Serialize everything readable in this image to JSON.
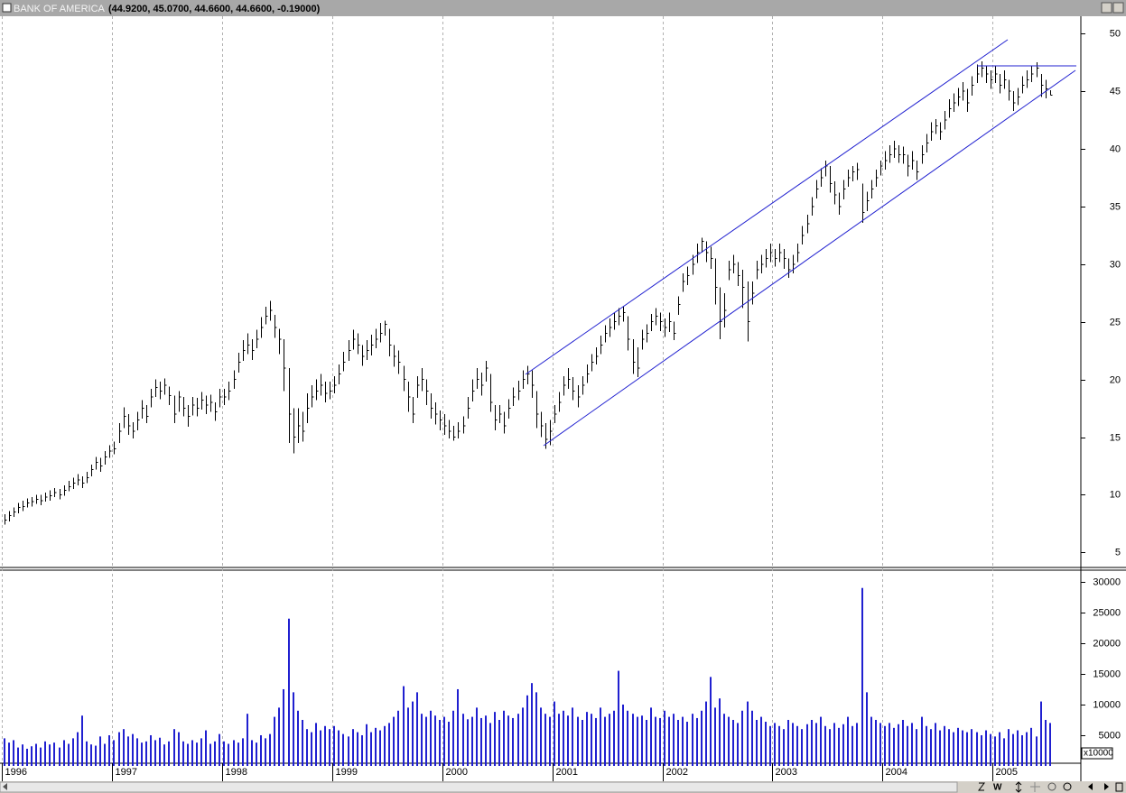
{
  "window": {
    "title": "BANK OF AMERICA",
    "quote": "(44.9200, 45.0700, 44.6600, 44.6600, -0.19000)",
    "period": "W"
  },
  "chart_data": [
    {
      "type": "ohlc",
      "color": "#000000",
      "categories": [
        "1996",
        null,
        null,
        null,
        null,
        null,
        null,
        null,
        null,
        null,
        null,
        null,
        null,
        null,
        null,
        null,
        null,
        null,
        null,
        null,
        null,
        null,
        null,
        null,
        "1997",
        null,
        null,
        null,
        null,
        null,
        null,
        null,
        null,
        null,
        null,
        null,
        null,
        null,
        null,
        null,
        null,
        null,
        null,
        null,
        null,
        null,
        null,
        null,
        "1998",
        null,
        null,
        null,
        null,
        null,
        null,
        null,
        null,
        null,
        null,
        null,
        null,
        null,
        null,
        null,
        null,
        null,
        null,
        null,
        null,
        null,
        null,
        null,
        "1999",
        null,
        null,
        null,
        null,
        null,
        null,
        null,
        null,
        null,
        null,
        null,
        null,
        null,
        null,
        null,
        null,
        null,
        null,
        null,
        null,
        null,
        null,
        null,
        "2000",
        null,
        null,
        null,
        null,
        null,
        null,
        null,
        null,
        null,
        null,
        null,
        null,
        null,
        null,
        null,
        null,
        null,
        null,
        null,
        null,
        null,
        null,
        null,
        "2001",
        null,
        null,
        null,
        null,
        null,
        null,
        null,
        null,
        null,
        null,
        null,
        null,
        null,
        null,
        null,
        null,
        null,
        null,
        null,
        null,
        null,
        null,
        null,
        "2002",
        null,
        null,
        null,
        null,
        null,
        null,
        null,
        null,
        null,
        null,
        null,
        null,
        null,
        null,
        null,
        null,
        null,
        null,
        null,
        null,
        null,
        null,
        null,
        "2003",
        null,
        null,
        null,
        null,
        null,
        null,
        null,
        null,
        null,
        null,
        null,
        null,
        null,
        null,
        null,
        null,
        null,
        null,
        null,
        null,
        null,
        null,
        null,
        "2004",
        null,
        null,
        null,
        null,
        null,
        null,
        null,
        null,
        null,
        null,
        null,
        null,
        null,
        null,
        null,
        null,
        null,
        null,
        null,
        null,
        null,
        null,
        null,
        "2005",
        null,
        null,
        null,
        null,
        null,
        null,
        null,
        null,
        null,
        null,
        null,
        null
      ],
      "high": [
        8.3,
        8.6,
        8.9,
        9.3,
        9.5,
        9.7,
        9.8,
        10.0,
        10.0,
        10.2,
        10.4,
        10.6,
        10.5,
        10.8,
        11.2,
        11.5,
        11.8,
        11.6,
        12.0,
        12.6,
        13.3,
        13.2,
        13.8,
        14.3,
        14.6,
        16.2,
        17.6,
        17.0,
        16.3,
        17.2,
        18.2,
        17.8,
        19.2,
        20.0,
        19.8,
        20.1,
        19.4,
        18.6,
        19.0,
        18.5,
        17.8,
        18.5,
        18.4,
        18.9,
        18.6,
        18.7,
        18.0,
        19.2,
        19.2,
        19.8,
        20.8,
        22.3,
        23.4,
        24.0,
        23.5,
        24.3,
        25.4,
        26.3,
        26.8,
        25.6,
        24.4,
        23.5,
        21.0,
        17.5,
        17.5,
        17.2,
        18.8,
        19.5,
        20.0,
        20.5,
        19.8,
        19.8,
        20.3,
        21.3,
        22.4,
        23.4,
        24.3,
        24.0,
        23.0,
        23.4,
        23.9,
        24.4,
        24.9,
        25.1,
        24.4,
        23.0,
        22.5,
        21.2,
        19.8,
        18.5,
        20.3,
        21.0,
        20.0,
        18.8,
        18.0,
        17.3,
        17.0,
        16.5,
        16.0,
        16.3,
        16.8,
        18.5,
        20.0,
        21.0,
        20.6,
        21.6,
        20.5,
        17.8,
        17.8,
        17.2,
        18.3,
        19.3,
        19.9,
        20.8,
        21.2,
        20.8,
        19.0,
        17.2,
        16.2,
        16.5,
        17.8,
        18.9,
        20.3,
        21.0,
        20.2,
        19.5,
        20.3,
        21.3,
        22.2,
        22.8,
        23.8,
        24.7,
        25.3,
        25.8,
        26.2,
        26.3,
        25.5,
        23.5,
        22.8,
        24.3,
        24.8,
        25.7,
        26.2,
        25.8,
        25.3,
        25.8,
        25.0,
        27.2,
        29.2,
        29.8,
        30.8,
        31.8,
        32.3,
        32.0,
        31.5,
        30.5,
        28.0,
        27.5,
        30.3,
        30.8,
        30.2,
        29.5,
        28.5,
        28.5,
        30.3,
        30.8,
        31.3,
        31.8,
        31.3,
        31.8,
        31.3,
        30.5,
        30.8,
        31.8,
        33.3,
        34.3,
        35.8,
        37.3,
        38.3,
        39.0,
        38.5,
        37.2,
        36.2,
        37.3,
        38.2,
        38.5,
        38.8,
        37.0,
        36.3,
        37.3,
        38.2,
        39.0,
        39.8,
        40.3,
        40.7,
        40.3,
        40.2,
        39.5,
        39.8,
        39.0,
        40.3,
        41.3,
        42.3,
        42.6,
        42.3,
        43.3,
        44.3,
        44.8,
        45.3,
        45.8,
        45.2,
        46.3,
        47.3,
        47.6,
        47.2,
        46.8,
        47.2,
        46.5,
        46.8,
        46.0,
        45.0,
        45.3,
        46.3,
        46.8,
        47.2,
        47.5,
        46.5,
        46.0,
        45.07
      ],
      "low": [
        7.4,
        7.7,
        8.1,
        8.4,
        8.6,
        8.9,
        9.0,
        9.2,
        9.1,
        9.4,
        9.5,
        9.8,
        9.6,
        9.9,
        10.3,
        10.5,
        10.8,
        10.6,
        11.0,
        11.6,
        12.2,
        12.0,
        12.6,
        13.2,
        13.5,
        14.5,
        15.8,
        15.2,
        14.9,
        15.6,
        16.6,
        16.2,
        17.6,
        18.5,
        18.3,
        18.7,
        17.8,
        16.2,
        17.2,
        16.8,
        15.9,
        16.9,
        16.8,
        17.4,
        17.0,
        17.2,
        16.4,
        17.6,
        17.8,
        18.2,
        19.2,
        20.6,
        21.6,
        22.2,
        21.7,
        22.7,
        23.6,
        24.8,
        25.1,
        23.6,
        22.2,
        19.0,
        14.5,
        13.6,
        14.5,
        14.6,
        16.2,
        17.6,
        18.2,
        18.6,
        18.0,
        18.3,
        18.8,
        19.6,
        20.7,
        21.6,
        22.6,
        22.2,
        21.2,
        21.7,
        22.1,
        22.7,
        23.2,
        23.8,
        22.0,
        21.1,
        20.5,
        19.0,
        17.2,
        16.2,
        18.4,
        19.0,
        17.8,
        16.6,
        16.1,
        15.6,
        15.2,
        14.9,
        14.7,
        14.9,
        15.3,
        16.6,
        18.1,
        19.2,
        18.6,
        19.8,
        17.2,
        15.6,
        16.2,
        15.3,
        16.6,
        17.7,
        18.2,
        19.2,
        19.6,
        18.4,
        15.8,
        15.0,
        14.0,
        14.3,
        16.2,
        17.2,
        18.6,
        19.2,
        18.2,
        17.6,
        18.7,
        19.7,
        20.7,
        21.3,
        22.2,
        23.2,
        23.7,
        24.3,
        24.7,
        25.0,
        22.5,
        20.5,
        20.2,
        22.6,
        23.2,
        24.2,
        24.7,
        24.2,
        23.7,
        24.1,
        23.4,
        25.6,
        27.6,
        28.2,
        29.1,
        30.1,
        31.0,
        30.2,
        29.6,
        26.5,
        23.5,
        24.5,
        28.6,
        29.2,
        28.1,
        26.2,
        23.3,
        26.5,
        28.7,
        29.2,
        29.7,
        30.2,
        29.8,
        30.2,
        29.6,
        28.8,
        29.2,
        30.2,
        31.7,
        32.7,
        34.2,
        35.7,
        36.7,
        37.6,
        36.2,
        35.2,
        34.3,
        35.6,
        36.7,
        37.2,
        37.3,
        33.6,
        34.6,
        35.7,
        36.7,
        37.7,
        38.2,
        38.8,
        39.2,
        38.8,
        38.7,
        37.6,
        38.2,
        37.3,
        38.7,
        39.7,
        40.7,
        41.3,
        40.8,
        41.7,
        42.7,
        43.2,
        43.7,
        44.2,
        43.2,
        44.6,
        45.7,
        46.2,
        45.7,
        45.2,
        45.7,
        44.8,
        45.2,
        44.2,
        43.3,
        43.8,
        44.8,
        45.3,
        45.8,
        46.2,
        44.5,
        44.4,
        44.66
      ],
      "close": [
        7.8,
        8.2,
        8.5,
        8.9,
        9.0,
        9.3,
        9.4,
        9.6,
        9.5,
        9.8,
        9.9,
        10.2,
        10.0,
        10.4,
        10.7,
        11.0,
        11.3,
        11.0,
        11.5,
        12.2,
        12.8,
        12.5,
        13.3,
        13.8,
        14.0,
        15.5,
        16.8,
        16.0,
        15.5,
        16.5,
        17.5,
        16.8,
        18.5,
        19.3,
        19.0,
        19.5,
        18.6,
        17.0,
        18.5,
        17.5,
        16.8,
        17.8,
        17.5,
        18.2,
        17.8,
        18.0,
        17.2,
        18.5,
        18.5,
        19.0,
        20.0,
        21.5,
        22.5,
        23.0,
        22.5,
        23.5,
        24.5,
        25.5,
        26.0,
        24.5,
        23.5,
        21.0,
        17.0,
        15.0,
        16.0,
        15.5,
        17.5,
        18.5,
        19.0,
        19.5,
        18.8,
        19.0,
        19.5,
        20.5,
        21.5,
        22.5,
        23.5,
        23.0,
        22.0,
        22.5,
        23.0,
        23.5,
        24.0,
        24.8,
        23.0,
        22.0,
        21.5,
        20.0,
        18.5,
        17.0,
        19.5,
        20.0,
        19.0,
        17.5,
        17.0,
        16.5,
        16.0,
        15.5,
        15.0,
        15.5,
        16.0,
        17.5,
        19.0,
        20.0,
        19.5,
        21.0,
        18.0,
        16.5,
        17.0,
        16.0,
        17.5,
        18.5,
        19.0,
        20.0,
        20.5,
        19.5,
        17.0,
        16.0,
        14.8,
        15.5,
        17.0,
        18.0,
        19.5,
        20.0,
        19.0,
        18.5,
        19.5,
        20.5,
        21.5,
        22.0,
        23.0,
        24.0,
        24.5,
        25.0,
        25.5,
        25.8,
        23.5,
        21.5,
        21.0,
        23.5,
        24.0,
        25.0,
        25.5,
        25.0,
        24.5,
        25.0,
        24.0,
        26.5,
        28.5,
        29.0,
        30.0,
        31.0,
        32.0,
        31.0,
        30.5,
        28.0,
        25.0,
        26.0,
        29.5,
        30.0,
        29.0,
        28.0,
        25.0,
        27.5,
        29.5,
        30.0,
        30.5,
        31.0,
        30.5,
        31.0,
        30.5,
        29.5,
        30.0,
        31.0,
        32.5,
        33.5,
        35.0,
        36.5,
        37.5,
        38.5,
        37.0,
        36.0,
        35.0,
        36.5,
        37.5,
        38.0,
        38.2,
        34.5,
        35.5,
        36.5,
        37.5,
        38.5,
        39.0,
        39.5,
        40.0,
        39.5,
        39.5,
        38.5,
        39.0,
        38.0,
        39.5,
        40.5,
        41.5,
        42.0,
        41.5,
        42.5,
        43.5,
        44.0,
        44.5,
        45.0,
        44.0,
        45.5,
        46.5,
        47.0,
        46.5,
        46.0,
        46.5,
        45.5,
        46.0,
        45.0,
        44.0,
        44.5,
        45.5,
        46.0,
        46.5,
        47.0,
        45.5,
        45.2,
        44.66
      ],
      "ylim": [
        3.7,
        51.5
      ],
      "yticks": [
        5,
        10,
        15,
        20,
        25,
        30,
        35,
        40,
        45,
        50
      ],
      "grid": "x"
    },
    {
      "type": "bar",
      "color": "#2020d0",
      "scale_label": "x10000",
      "values": [
        4500,
        3800,
        4200,
        3000,
        3500,
        2800,
        3200,
        3600,
        3000,
        4000,
        3500,
        3800,
        3000,
        4200,
        3600,
        4500,
        5500,
        8200,
        4000,
        3500,
        3300,
        4800,
        3600,
        5000,
        4200,
        5500,
        6000,
        4800,
        5200,
        4500,
        3800,
        4000,
        5000,
        4200,
        4600,
        3500,
        4000,
        6000,
        5500,
        4000,
        3600,
        4200,
        3800,
        4500,
        5800,
        3600,
        4000,
        5200,
        4000,
        3600,
        4200,
        3800,
        4500,
        8500,
        4200,
        3800,
        5000,
        4500,
        5200,
        8000,
        9500,
        12500,
        24000,
        12000,
        9000,
        7500,
        6000,
        5500,
        7000,
        5800,
        6500,
        6000,
        6500,
        5800,
        5200,
        4800,
        6000,
        5500,
        5000,
        6800,
        5500,
        6200,
        5800,
        6500,
        7000,
        8000,
        9000,
        13000,
        9500,
        10500,
        12000,
        8500,
        8000,
        9000,
        8200,
        7500,
        8000,
        7200,
        9000,
        12500,
        8500,
        7600,
        8000,
        9500,
        7800,
        8200,
        7000,
        8800,
        7500,
        9000,
        8200,
        7800,
        8500,
        9500,
        11500,
        13500,
        12000,
        9500,
        8500,
        8000,
        10500,
        8500,
        9000,
        8200,
        9500,
        8000,
        7500,
        8800,
        8500,
        7800,
        9500,
        8000,
        8500,
        9000,
        15500,
        10000,
        9000,
        8500,
        8000,
        8200,
        7500,
        9500,
        8000,
        7800,
        9000,
        8000,
        8500,
        7500,
        8000,
        7200,
        8500,
        7800,
        9000,
        10500,
        14500,
        9500,
        11000,
        8500,
        8000,
        7500,
        7000,
        9000,
        10500,
        9000,
        7500,
        8000,
        7200,
        6500,
        7000,
        6500,
        6000,
        7500,
        7000,
        6500,
        6000,
        6800,
        7500,
        7000,
        8000,
        6500,
        6000,
        7000,
        6200,
        6800,
        8000,
        6500,
        7000,
        29000,
        12000,
        8000,
        7500,
        7000,
        6500,
        7000,
        6200,
        6800,
        7500,
        6500,
        7000,
        6000,
        8000,
        6500,
        6000,
        7000,
        5800,
        6500,
        6000,
        5500,
        6200,
        5800,
        5500,
        6000,
        5500,
        5000,
        5800,
        5200,
        4800,
        5500,
        4500,
        6000,
        5200,
        5800,
        5000,
        5500,
        6200,
        4800,
        10500,
        7500,
        7000
      ],
      "ylim": [
        0,
        31900
      ],
      "yticks": [
        5000,
        10000,
        15000,
        20000,
        25000,
        30000
      ]
    }
  ]
}
